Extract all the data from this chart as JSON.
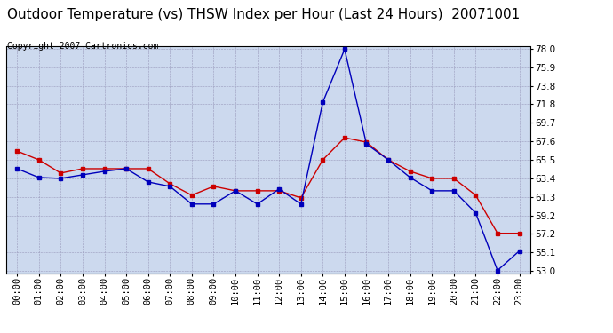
{
  "title": "Outdoor Temperature (vs) THSW Index per Hour (Last 24 Hours)  20071001",
  "copyright": "Copyright 2007 Cartronics.com",
  "hours": [
    "00:00",
    "01:00",
    "02:00",
    "03:00",
    "04:00",
    "05:00",
    "06:00",
    "07:00",
    "08:00",
    "09:00",
    "10:00",
    "11:00",
    "12:00",
    "13:00",
    "14:00",
    "15:00",
    "16:00",
    "17:00",
    "18:00",
    "19:00",
    "20:00",
    "21:00",
    "22:00",
    "23:00"
  ],
  "temp": [
    66.5,
    65.5,
    64.0,
    64.5,
    64.5,
    64.5,
    64.5,
    62.8,
    61.5,
    62.5,
    62.0,
    62.0,
    62.0,
    61.2,
    65.5,
    68.0,
    67.5,
    65.5,
    64.2,
    63.4,
    63.4,
    61.5,
    57.2,
    57.2
  ],
  "thsw": [
    64.5,
    63.5,
    63.4,
    63.8,
    64.2,
    64.5,
    63.0,
    62.5,
    60.5,
    60.5,
    62.0,
    60.5,
    62.2,
    60.5,
    72.0,
    78.0,
    67.3,
    65.5,
    63.5,
    62.0,
    62.0,
    59.5,
    53.0,
    55.2
  ],
  "temp_color": "#cc0000",
  "thsw_color": "#0000bb",
  "bg_color": "#ffffff",
  "grid_color": "#9999bb",
  "plot_bg_color": "#ccd9ee",
  "ylim_min": 53.0,
  "ylim_max": 78.0,
  "yticks": [
    53.0,
    55.1,
    57.2,
    59.2,
    61.3,
    63.4,
    65.5,
    67.6,
    69.7,
    71.8,
    73.8,
    75.9,
    78.0
  ],
  "title_fontsize": 11,
  "copyright_fontsize": 7,
  "tick_fontsize": 7.5
}
